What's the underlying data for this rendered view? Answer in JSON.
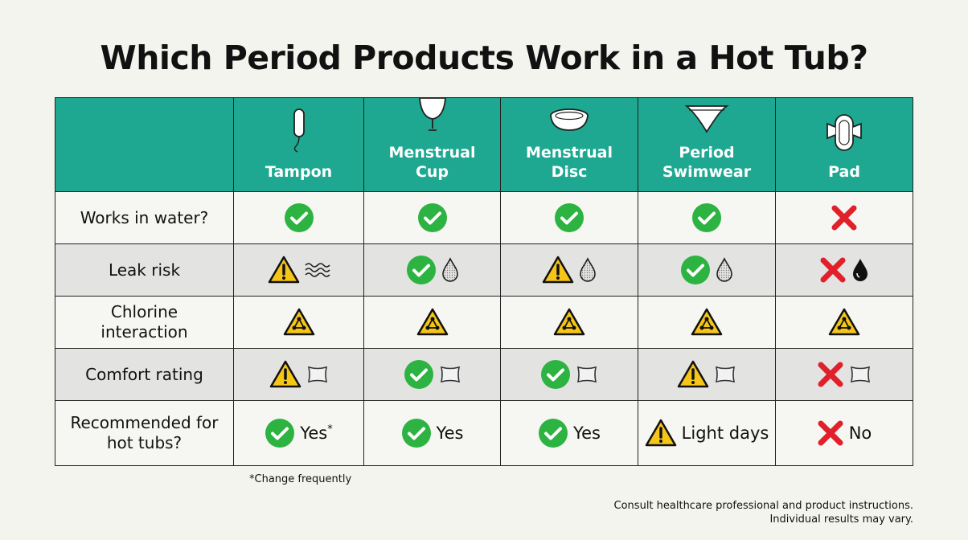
{
  "title": "Which Period Products Work in a Hot Tub?",
  "table": {
    "columns": [
      "Tampon",
      "Menstrual Cup",
      "Menstrual Disc",
      "Period Swimwear",
      "Pad"
    ],
    "rows": [
      {
        "label": "Works in water?"
      },
      {
        "label": "Leak risk"
      },
      {
        "label": "Chlorine interaction"
      },
      {
        "label": "Comfort rating"
      },
      {
        "label": "Recommended for hot tubs?",
        "cells": [
          "Yes",
          "Yes",
          "Yes",
          "Light days",
          "No"
        ],
        "marker": "*"
      }
    ]
  },
  "footnote": "*Change frequently",
  "disclaimer": [
    "Consult healthcare professional and product instructions.",
    "Individual results may vary."
  ]
}
